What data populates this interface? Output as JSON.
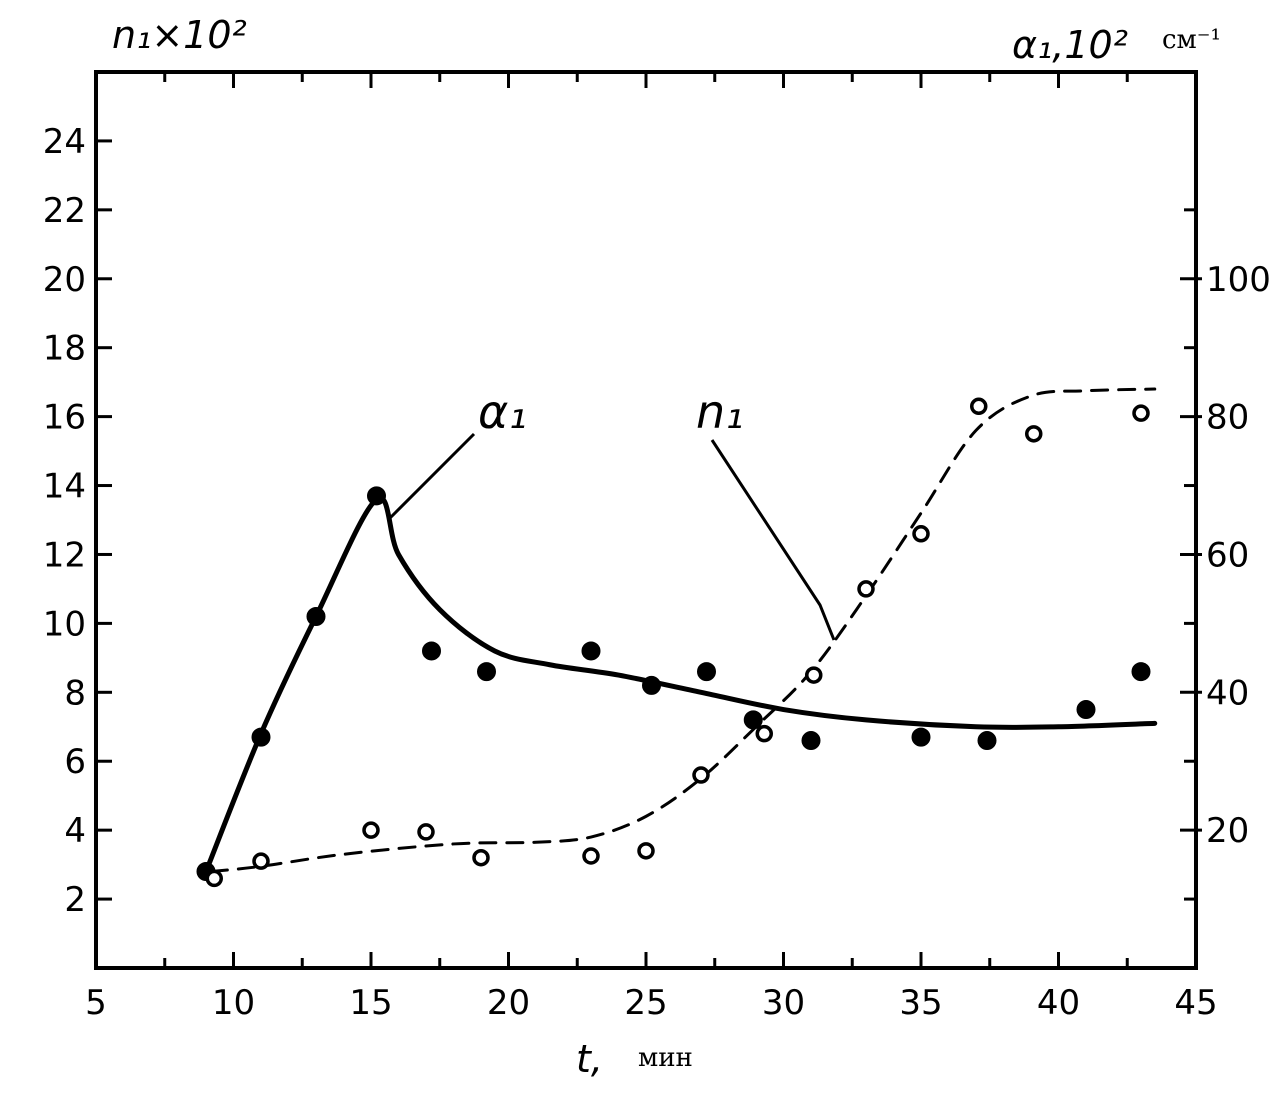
{
  "chart_data": {
    "type": "scatter",
    "x_axis": {
      "label": "t,",
      "unit": "мин",
      "range": [
        5,
        45
      ],
      "ticks": [
        "5",
        "10",
        "15",
        "20",
        "25",
        "30",
        "35",
        "40",
        "45"
      ]
    },
    "y_left": {
      "label": "n₁×10²",
      "range": [
        0,
        26
      ],
      "ticks": [
        "2",
        "4",
        "6",
        "8",
        "10",
        "12",
        "14",
        "16",
        "18",
        "20",
        "22",
        "24"
      ]
    },
    "y_right": {
      "label": "α₁,10²",
      "unit": "см⁻¹",
      "range": [
        0,
        130
      ],
      "ticks": [
        "20",
        "40",
        "60",
        "80",
        "100"
      ]
    },
    "series": [
      {
        "name": "α₁",
        "axis": "right",
        "marker": "filled-circle",
        "line": "solid",
        "points": [
          [
            9,
            14
          ],
          [
            11,
            33.5
          ],
          [
            13,
            51
          ],
          [
            15.2,
            68.5
          ],
          [
            17.2,
            46
          ],
          [
            19.2,
            43
          ],
          [
            23,
            46
          ],
          [
            25.2,
            41
          ],
          [
            27.2,
            43
          ],
          [
            28.9,
            36
          ],
          [
            31,
            33
          ],
          [
            35,
            33.5
          ],
          [
            37.4,
            33
          ],
          [
            41,
            37.5
          ],
          [
            43,
            43
          ]
        ],
        "curve": [
          [
            9,
            14
          ],
          [
            11,
            34
          ],
          [
            13,
            51
          ],
          [
            15.2,
            68
          ],
          [
            16,
            60
          ],
          [
            17.5,
            52
          ],
          [
            19.5,
            46
          ],
          [
            21.5,
            44
          ],
          [
            24,
            42.5
          ],
          [
            27,
            40
          ],
          [
            30,
            37.5
          ],
          [
            33,
            36
          ],
          [
            37,
            35
          ],
          [
            40,
            35
          ],
          [
            43.5,
            35.5
          ]
        ]
      },
      {
        "name": "n₁",
        "axis": "left",
        "marker": "open-circle",
        "line": "dashed",
        "points": [
          [
            9.3,
            2.6
          ],
          [
            11,
            3.1
          ],
          [
            15,
            4.0
          ],
          [
            17,
            3.95
          ],
          [
            19,
            3.2
          ],
          [
            23,
            3.25
          ],
          [
            25,
            3.4
          ],
          [
            27,
            5.6
          ],
          [
            29.3,
            6.8
          ],
          [
            31.1,
            8.5
          ],
          [
            33,
            11
          ],
          [
            35,
            12.6
          ],
          [
            37.1,
            16.3
          ],
          [
            39.1,
            15.5
          ],
          [
            43,
            16.1
          ]
        ],
        "curve": [
          [
            9.2,
            2.8
          ],
          [
            11,
            2.95
          ],
          [
            14,
            3.3
          ],
          [
            18,
            3.6
          ],
          [
            21,
            3.65
          ],
          [
            23,
            3.8
          ],
          [
            25,
            4.4
          ],
          [
            27,
            5.5
          ],
          [
            29,
            7.0
          ],
          [
            31,
            8.6
          ],
          [
            33,
            10.8
          ],
          [
            35,
            13.2
          ],
          [
            37,
            15.6
          ],
          [
            39,
            16.6
          ],
          [
            41,
            16.75
          ],
          [
            43.5,
            16.8
          ]
        ]
      }
    ],
    "annotations": [
      {
        "text": "α₁",
        "series": "α₁"
      },
      {
        "text": "n₁",
        "series": "n₁"
      }
    ],
    "grid": false,
    "legend": "inline labels with leader lines"
  }
}
